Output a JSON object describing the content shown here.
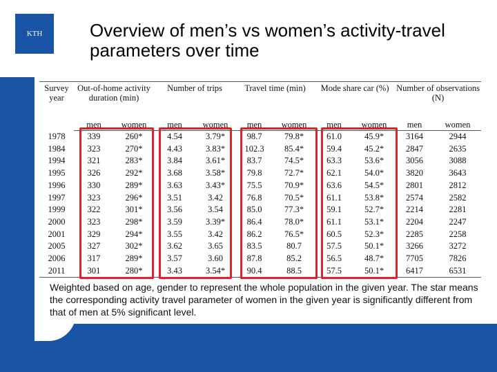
{
  "header": {
    "logo": "KTH",
    "title": "Overview of men’s vs women’s activity-travel parameters over time"
  },
  "table": {
    "columns": [
      "Survey year",
      "Out-of-home activity duration (min)",
      "Number of trips",
      "Travel time (min)",
      "Mode share car (%)",
      "Number of observations (N)"
    ],
    "subcolumns": [
      "men",
      "women",
      "men",
      "women",
      "men",
      "women",
      "men",
      "women",
      "men",
      "women"
    ],
    "rows": [
      [
        "1978",
        "339",
        "260*",
        "4.54",
        "3.79*",
        "98.7",
        "79.8*",
        "61.0",
        "45.9*",
        "3164",
        "2944"
      ],
      [
        "1984",
        "323",
        "270*",
        "4.43",
        "3.83*",
        "102.3",
        "85.4*",
        "59.4",
        "45.2*",
        "2847",
        "2635"
      ],
      [
        "1994",
        "321",
        "283*",
        "3.84",
        "3.61*",
        "83.7",
        "74.5*",
        "63.3",
        "53.6*",
        "3056",
        "3088"
      ],
      [
        "1995",
        "326",
        "292*",
        "3.68",
        "3.58*",
        "79.8",
        "72.7*",
        "62.1",
        "54.0*",
        "3820",
        "3643"
      ],
      [
        "1996",
        "330",
        "289*",
        "3.63",
        "3.43*",
        "75.5",
        "70.9*",
        "63.6",
        "54.5*",
        "2801",
        "2812"
      ],
      [
        "1997",
        "323",
        "296*",
        "3.51",
        "3.42",
        "76.8",
        "70.5*",
        "61.1",
        "53.8*",
        "2574",
        "2582"
      ],
      [
        "1999",
        "322",
        "301*",
        "3.56",
        "3.54",
        "85.0",
        "77.3*",
        "59.1",
        "52.7*",
        "2214",
        "2281"
      ],
      [
        "2000",
        "323",
        "298*",
        "3.59",
        "3.39*",
        "86.4",
        "78.0*",
        "61.1",
        "53.1*",
        "2204",
        "2247"
      ],
      [
        "2001",
        "329",
        "294*",
        "3.55",
        "3.42",
        "86.2",
        "76.5*",
        "60.5",
        "52.3*",
        "2285",
        "2258"
      ],
      [
        "2005",
        "327",
        "302*",
        "3.62",
        "3.65",
        "83.5",
        "80.7",
        "57.5",
        "50.1*",
        "3266",
        "3272"
      ],
      [
        "2006",
        "317",
        "289*",
        "3.57",
        "3.60",
        "87.8",
        "85.2",
        "56.5",
        "48.7*",
        "7705",
        "7826"
      ],
      [
        "2011",
        "301",
        "280*",
        "3.43",
        "3.54*",
        "90.4",
        "88.5",
        "57.5",
        "50.1*",
        "6417",
        "6531"
      ]
    ]
  },
  "note": "Weighted based on age, gender to represent the whole population in the given year. The star means the corresponding activity travel parameter of women in the given year is significantly different from that of men at 5% significant level."
}
